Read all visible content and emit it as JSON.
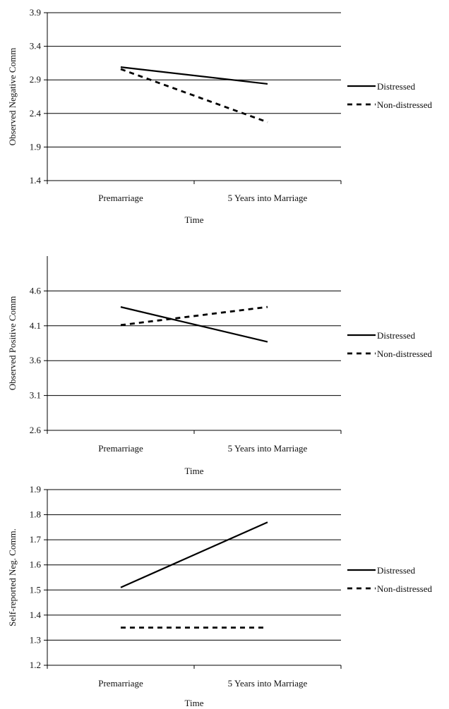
{
  "chart_data": [
    {
      "type": "line",
      "title": "",
      "xlabel": "Time",
      "ylabel": "Observed Negative Comm",
      "categories": [
        "Premarriage",
        "5 Years into Marriage"
      ],
      "ylim": [
        1.4,
        3.9
      ],
      "yticks": [
        "1.4",
        "1.9",
        "2.4",
        "2.9",
        "3.4",
        "3.9"
      ],
      "grid": true,
      "legend": "right",
      "series": [
        {
          "name": "Distressed",
          "values": [
            3.09,
            2.84
          ],
          "style": "solid",
          "color": "#000000"
        },
        {
          "name": "Non-distressed",
          "values": [
            3.06,
            2.27
          ],
          "style": "dashed",
          "color": "#000000"
        }
      ]
    },
    {
      "type": "line",
      "title": "",
      "xlabel": "Time",
      "ylabel": "Observed Positive Comm",
      "categories": [
        "Premarriage",
        "5 Years into Marriage"
      ],
      "ylim": [
        2.6,
        5.1
      ],
      "yticks": [
        "2.6",
        "3.1",
        "3.6",
        "4.1",
        "4.6"
      ],
      "grid": true,
      "legend": "right",
      "series": [
        {
          "name": "Distressed",
          "values": [
            4.37,
            3.87
          ],
          "style": "solid",
          "color": "#000000"
        },
        {
          "name": "Non-distressed",
          "values": [
            4.11,
            4.37
          ],
          "style": "dashed",
          "color": "#000000"
        }
      ]
    },
    {
      "type": "line",
      "title": "",
      "xlabel": "Time",
      "ylabel": "Self-reported Neg. Comm.",
      "categories": [
        "Premarriage",
        "5 Years into Marriage"
      ],
      "ylim": [
        1.2,
        1.9
      ],
      "yticks": [
        "1.2",
        "1.3",
        "1.4",
        "1.5",
        "1.6",
        "1.7",
        "1.8",
        "1.9"
      ],
      "grid": true,
      "legend": "right",
      "series": [
        {
          "name": "Distressed",
          "values": [
            1.51,
            1.77
          ],
          "style": "solid",
          "color": "#000000"
        },
        {
          "name": "Non-distressed",
          "values": [
            1.35,
            1.35
          ],
          "style": "dashed",
          "color": "#000000"
        }
      ]
    }
  ]
}
